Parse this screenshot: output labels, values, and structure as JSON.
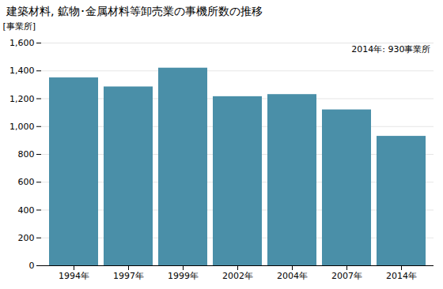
{
  "chart_data": {
    "type": "bar",
    "title": "建築材料, 鉱物･金属材料等卸売業の事機所数の推移",
    "ylabel": "[事業所]",
    "annotation": "2014年: 930事業所",
    "categories": [
      "1994年",
      "1997年",
      "1999年",
      "2002年",
      "2004年",
      "2007年",
      "2014年"
    ],
    "values": [
      1350,
      1285,
      1420,
      1215,
      1230,
      1120,
      930
    ],
    "color": "#4a8fa8",
    "ylim": [
      0,
      1600
    ],
    "yticks": [
      0,
      200,
      400,
      600,
      800,
      {
        "value": 1000,
        "label": "1,000"
      },
      {
        "value": 1200,
        "label": "1,200"
      },
      {
        "value": 1400,
        "label": "1,400"
      },
      {
        "value": 1600,
        "label": "1,600"
      }
    ],
    "grid": true
  }
}
